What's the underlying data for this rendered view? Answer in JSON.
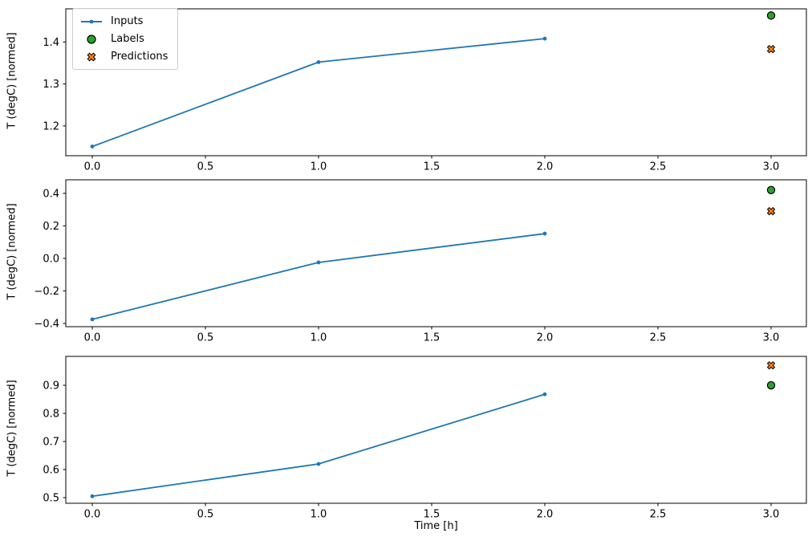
{
  "figure": {
    "background": "#ffffff",
    "text_color": "#000000",
    "spine_color": "#000000",
    "xlabel": "Time [h]",
    "ylabel": "T (degC) [normed]",
    "legend": {
      "position": "upper-left",
      "border_color": "#cccccc",
      "items": [
        {
          "label": "Inputs",
          "marker": "line-with-dot",
          "color": "#1f77b4"
        },
        {
          "label": "Labels",
          "marker": "filled-circle",
          "color": "#2ca02c",
          "edge_color": "#000000"
        },
        {
          "label": "Predictions",
          "marker": "filled-x",
          "color": "#ff7f0e",
          "edge_color": "#000000"
        }
      ]
    }
  },
  "chart_data": [
    {
      "type": "line",
      "subplot": "top",
      "title": "",
      "xlabel": "",
      "ylabel": "T (degC) [normed]",
      "grid": false,
      "xlim": [
        -0.117,
        3.156
      ],
      "ylim": [
        1.129,
        1.479
      ],
      "x_ticks": [
        0.0,
        0.5,
        1.0,
        1.5,
        2.0,
        2.5,
        3.0
      ],
      "x_tick_labels": [
        "0.0",
        "0.5",
        "1.0",
        "1.5",
        "2.0",
        "2.5",
        "3.0"
      ],
      "y_ticks": [
        1.2,
        1.3,
        1.4
      ],
      "y_tick_labels": [
        "1.2",
        "1.3",
        "1.4"
      ],
      "series": [
        {
          "name": "Inputs",
          "style": "line-dot",
          "color": "#1f77b4",
          "x": [
            0.0,
            1.0,
            2.0
          ],
          "y": [
            1.151,
            1.352,
            1.408
          ]
        },
        {
          "name": "Labels",
          "style": "circle",
          "color": "#2ca02c",
          "edge_color": "#000000",
          "x": [
            3.0
          ],
          "y": [
            1.463
          ]
        },
        {
          "name": "Predictions",
          "style": "x",
          "color": "#ff7f0e",
          "edge_color": "#000000",
          "x": [
            3.0
          ],
          "y": [
            1.383
          ]
        }
      ]
    },
    {
      "type": "line",
      "subplot": "middle",
      "title": "",
      "xlabel": "",
      "ylabel": "T (degC) [normed]",
      "grid": false,
      "xlim": [
        -0.117,
        3.156
      ],
      "ylim": [
        -0.42,
        0.483
      ],
      "x_ticks": [
        0.0,
        0.5,
        1.0,
        1.5,
        2.0,
        2.5,
        3.0
      ],
      "x_tick_labels": [
        "0.0",
        "0.5",
        "1.0",
        "1.5",
        "2.0",
        "2.5",
        "3.0"
      ],
      "y_ticks": [
        -0.4,
        -0.2,
        0.0,
        0.2,
        0.4
      ],
      "y_tick_labels": [
        "−0.4",
        "−0.2",
        "0.0",
        "0.2",
        "0.4"
      ],
      "series": [
        {
          "name": "Inputs",
          "style": "line-dot",
          "color": "#1f77b4",
          "x": [
            0.0,
            1.0,
            2.0
          ],
          "y": [
            -0.375,
            -0.025,
            0.152
          ]
        },
        {
          "name": "Labels",
          "style": "circle",
          "color": "#2ca02c",
          "edge_color": "#000000",
          "x": [
            3.0
          ],
          "y": [
            0.42
          ]
        },
        {
          "name": "Predictions",
          "style": "x",
          "color": "#ff7f0e",
          "edge_color": "#000000",
          "x": [
            3.0
          ],
          "y": [
            0.29
          ]
        }
      ]
    },
    {
      "type": "line",
      "subplot": "bottom",
      "title": "",
      "xlabel": "Time [h]",
      "ylabel": "T (degC) [normed]",
      "grid": false,
      "xlim": [
        -0.117,
        3.156
      ],
      "ylim": [
        0.48,
        1.003
      ],
      "x_ticks": [
        0.0,
        0.5,
        1.0,
        1.5,
        2.0,
        2.5,
        3.0
      ],
      "x_tick_labels": [
        "0.0",
        "0.5",
        "1.0",
        "1.5",
        "2.0",
        "2.5",
        "3.0"
      ],
      "y_ticks": [
        0.5,
        0.6,
        0.7,
        0.8,
        0.9
      ],
      "y_tick_labels": [
        "0.5",
        "0.6",
        "0.7",
        "0.8",
        "0.9"
      ],
      "series": [
        {
          "name": "Inputs",
          "style": "line-dot",
          "color": "#1f77b4",
          "x": [
            0.0,
            1.0,
            2.0
          ],
          "y": [
            0.505,
            0.62,
            0.868
          ]
        },
        {
          "name": "Labels",
          "style": "circle",
          "color": "#2ca02c",
          "edge_color": "#000000",
          "x": [
            3.0
          ],
          "y": [
            0.9
          ]
        },
        {
          "name": "Predictions",
          "style": "x",
          "color": "#ff7f0e",
          "edge_color": "#000000",
          "x": [
            3.0
          ],
          "y": [
            0.971
          ]
        }
      ]
    }
  ]
}
